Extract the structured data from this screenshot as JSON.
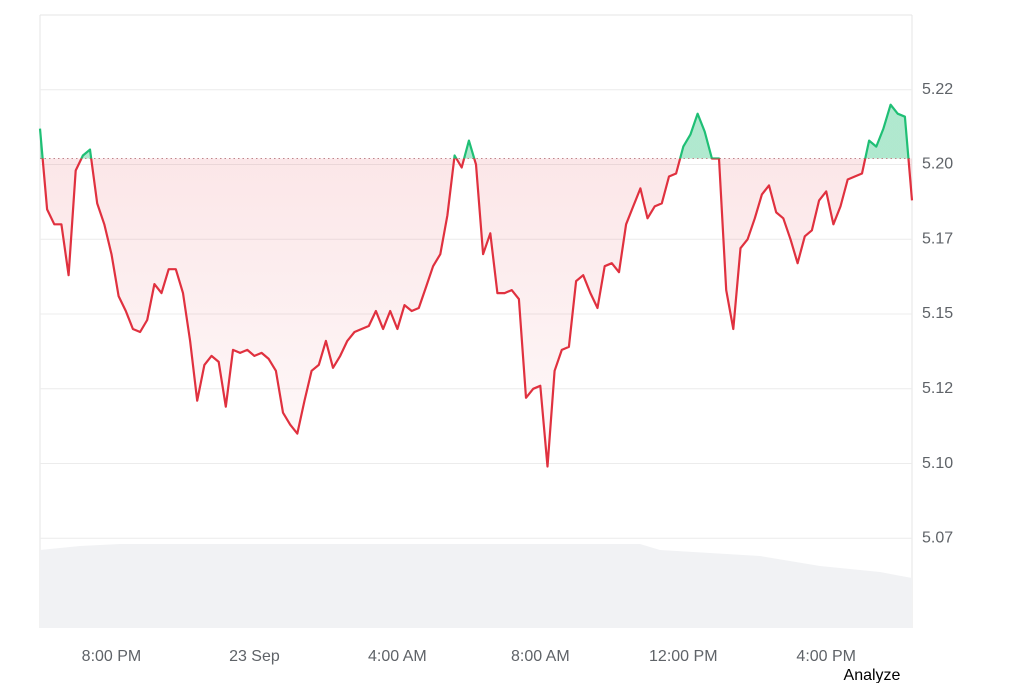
{
  "chart_data": {
    "type": "line",
    "x": [
      18,
      18.2,
      18.4,
      18.6,
      18.8,
      19,
      19.2,
      19.4,
      19.6,
      19.8,
      20,
      20.2,
      20.4,
      20.6,
      20.8,
      21,
      21.2,
      21.4,
      21.6,
      21.8,
      22,
      22.2,
      22.4,
      22.6,
      22.8,
      23,
      23.2,
      23.4,
      23.6,
      23.8,
      24,
      24.2,
      24.4,
      24.6,
      24.8,
      25,
      25.2,
      25.4,
      25.6,
      25.8,
      26,
      26.2,
      26.4,
      26.6,
      26.8,
      27,
      27.2,
      27.4,
      27.6,
      27.8,
      28,
      28.2,
      28.4,
      28.6,
      28.8,
      29,
      29.2,
      29.4,
      29.6,
      29.8,
      30,
      30.2,
      30.4,
      30.6,
      30.8,
      31,
      31.2,
      31.4,
      31.6,
      31.8,
      32,
      32.2,
      32.4,
      32.6,
      32.8,
      33,
      33.2,
      33.4,
      33.6,
      33.8,
      34,
      34.2,
      34.4,
      34.6,
      34.8,
      35,
      35.2,
      35.4,
      35.6,
      35.8,
      36,
      36.2,
      36.4,
      36.6,
      36.8,
      37,
      37.2,
      37.4,
      37.6,
      37.8,
      38,
      38.2,
      38.4,
      38.6,
      38.8,
      39,
      39.2,
      39.4,
      39.6,
      39.8,
      40,
      40.2,
      40.4,
      40.6,
      40.8,
      41,
      41.2,
      41.4,
      41.6,
      41.8,
      42,
      42.2,
      42.4
    ],
    "series": [
      {
        "values": [
          5.212,
          5.185,
          5.18,
          5.18,
          5.163,
          5.198,
          5.203,
          5.205,
          5.187,
          5.18,
          5.17,
          5.156,
          5.151,
          5.145,
          5.144,
          5.148,
          5.16,
          5.157,
          5.165,
          5.165,
          5.157,
          5.141,
          5.121,
          5.133,
          5.136,
          5.134,
          5.119,
          5.138,
          5.137,
          5.138,
          5.136,
          5.137,
          5.135,
          5.131,
          5.117,
          5.113,
          5.11,
          5.121,
          5.131,
          5.133,
          5.141,
          5.132,
          5.136,
          5.141,
          5.144,
          5.145,
          5.146,
          5.151,
          5.145,
          5.151,
          5.145,
          5.153,
          5.151,
          5.152,
          5.159,
          5.166,
          5.17,
          5.183,
          5.203,
          5.199,
          5.208,
          5.2,
          5.17,
          5.177,
          5.157,
          5.157,
          5.158,
          5.155,
          5.122,
          5.125,
          5.126,
          5.099,
          5.131,
          5.138,
          5.139,
          5.161,
          5.163,
          5.157,
          5.152,
          5.166,
          5.167,
          5.164,
          5.18,
          5.186,
          5.192,
          5.182,
          5.186,
          5.187,
          5.196,
          5.197,
          5.206,
          5.21,
          5.217,
          5.211,
          5.202,
          5.202,
          5.158,
          5.145,
          5.172,
          5.175,
          5.182,
          5.19,
          5.193,
          5.184,
          5.182,
          5.175,
          5.167,
          5.176,
          5.178,
          5.188,
          5.191,
          5.18,
          5.186,
          5.195,
          5.196,
          5.197,
          5.208,
          5.206,
          5.212,
          5.22,
          5.217,
          5.216,
          5.188
        ]
      }
    ],
    "baseline": 5.202,
    "up_color": "#1fbf75",
    "down_color": "#e0313f",
    "xlim": [
      18,
      42.4
    ],
    "xticks": [
      {
        "value": 20,
        "label": "8:00 PM"
      },
      {
        "value": 24,
        "label": "23 Sep"
      },
      {
        "value": 28,
        "label": "4:00 AM"
      },
      {
        "value": 32,
        "label": "8:00 AM"
      },
      {
        "value": 36,
        "label": "12:00 PM"
      },
      {
        "value": 40,
        "label": "4:00 PM"
      }
    ],
    "ylim": [
      5.045,
      5.25
    ],
    "yticks": [
      {
        "value": 5.075,
        "label": "5.07"
      },
      {
        "value": 5.1,
        "label": "5.10"
      },
      {
        "value": 5.125,
        "label": "5.12"
      },
      {
        "value": 5.15,
        "label": "5.15"
      },
      {
        "value": 5.175,
        "label": "5.17"
      },
      {
        "value": 5.2,
        "label": "5.20"
      },
      {
        "value": 5.225,
        "label": "5.22"
      }
    ],
    "grid": true
  },
  "button": "Analyze"
}
